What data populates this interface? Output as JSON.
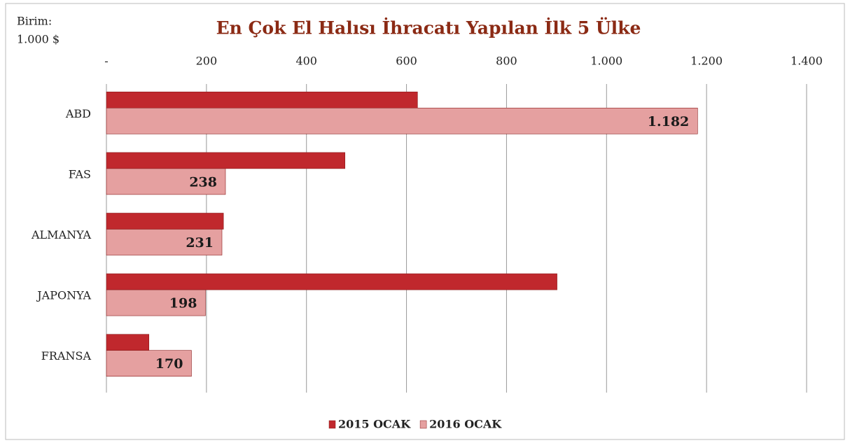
{
  "chart_data": {
    "type": "barh",
    "title": "En Çok El Halısı İhracatı Yapılan İlk 5 Ülke",
    "unit_label": [
      "Birim:",
      "1.000 $"
    ],
    "categories": [
      "ABD",
      "FAS",
      "ALMANYA",
      "JAPONYA",
      "FRANSA"
    ],
    "series": [
      {
        "name": "2015 OCAK",
        "color": "#c0282d",
        "values": [
          622,
          477,
          234,
          901,
          85
        ]
      },
      {
        "name": "2016 OCAK",
        "color": "#e5a0a0",
        "values": [
          1182,
          238,
          231,
          198,
          170
        ],
        "value_labels": [
          "1.182",
          "238",
          "231",
          "198",
          "170"
        ]
      }
    ],
    "xlim": [
      0,
      1400
    ],
    "xticks": [
      {
        "value": 0,
        "label": "-"
      },
      200,
      400,
      600,
      800,
      {
        "value": 1000,
        "label": "1.000"
      },
      {
        "value": 1200,
        "label": "1.200"
      },
      {
        "value": 1400,
        "label": "1.400"
      }
    ],
    "grid": true,
    "legend": "bottom"
  }
}
